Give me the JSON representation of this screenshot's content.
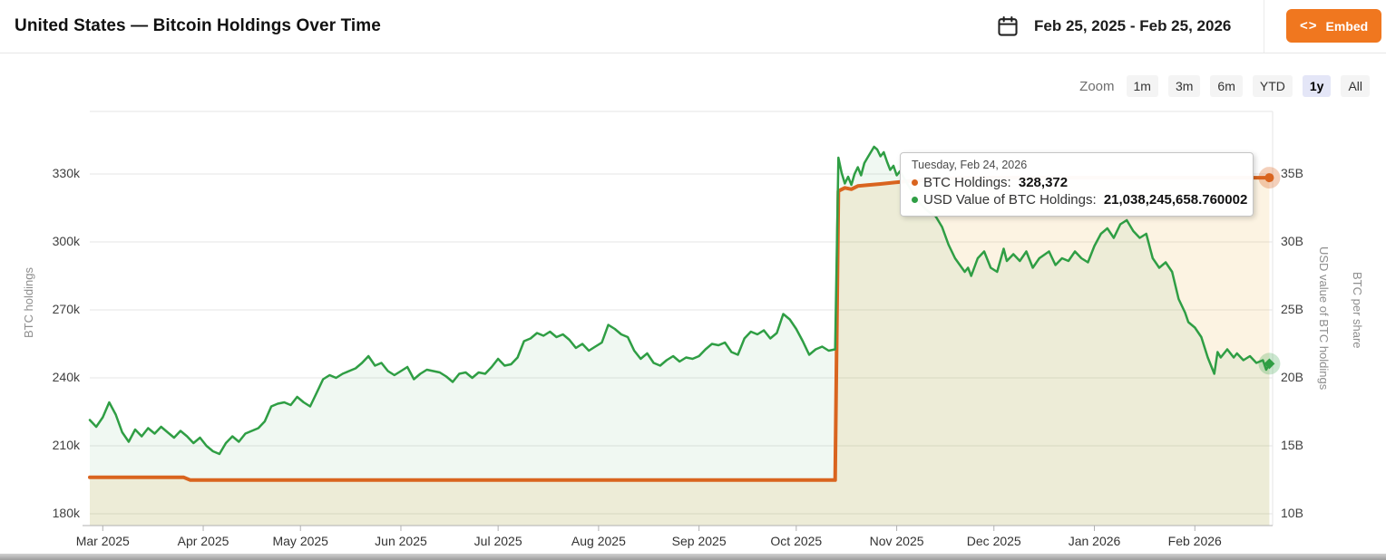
{
  "header": {
    "title": "United States — Bitcoin Holdings Over Time",
    "date_range": "Feb 25, 2025 - Feb 25, 2026",
    "embed_icon": "<>",
    "embed_label": "Embed"
  },
  "toolbar": {
    "zoom_label": "Zoom",
    "buttons": [
      "1m",
      "3m",
      "6m",
      "YTD",
      "1y",
      "All"
    ],
    "selected": "1y"
  },
  "tooltip": {
    "date": "Tuesday, Feb 24, 2026",
    "rows": [
      {
        "label": "BTC Holdings:",
        "value": "328,372",
        "color": "#d9641f"
      },
      {
        "label": "USD Value of BTC Holdings:",
        "value": "21,038,245,658.760002",
        "color": "#2f9e44"
      }
    ]
  },
  "colors": {
    "btc_line": "#d9641f",
    "usd_line": "#2f9e44",
    "btc_fill": "rgba(230,160,30,0.13)",
    "usd_fill": "rgba(47,158,68,0.07)",
    "btc_halo": "rgba(217,100,31,0.3)",
    "usd_halo": "rgba(47,158,68,0.25)",
    "grid": "#e6e6e6",
    "axis_line": "#b0b0b0",
    "accent_button": "#f0771f",
    "selected_range": "#e4e6f7"
  },
  "chart_data": {
    "type": "line",
    "title": "United States — Bitcoin Holdings Over Time",
    "x_range": [
      "Feb 25, 2025",
      "Feb 25, 2026"
    ],
    "grid": "horizontal-only",
    "legend": "none (tooltip shows series names)",
    "axes": {
      "x": {
        "ticks": [
          {
            "label": "Mar 2025",
            "day": 4
          },
          {
            "label": "Apr 2025",
            "day": 35
          },
          {
            "label": "May 2025",
            "day": 65
          },
          {
            "label": "Jun 2025",
            "day": 96
          },
          {
            "label": "Jul 2025",
            "day": 126
          },
          {
            "label": "Aug 2025",
            "day": 157
          },
          {
            "label": "Sep 2025",
            "day": 188
          },
          {
            "label": "Oct 2025",
            "day": 218
          },
          {
            "label": "Nov 2025",
            "day": 249
          },
          {
            "label": "Dec 2025",
            "day": 279
          },
          {
            "label": "Jan 2026",
            "day": 310
          },
          {
            "label": "Feb 2026",
            "day": 341
          }
        ]
      },
      "left": {
        "title": "BTC holdings",
        "tick_labels": [
          "330k",
          "300k",
          "270k",
          "240k",
          "210k",
          "180k"
        ],
        "tick_values": [
          330000,
          300000,
          270000,
          240000,
          210000,
          180000
        ],
        "range": [
          180000,
          345000
        ]
      },
      "right": {
        "titles": [
          "USD value of BTC holdings",
          "BTC per share"
        ],
        "tick_labels": [
          "35B",
          "30B",
          "25B",
          "20B",
          "15B",
          "10B"
        ],
        "tick_values": [
          35,
          30,
          25,
          20,
          15,
          10
        ],
        "range_billions": [
          10,
          37.5
        ]
      }
    },
    "series": [
      {
        "name": "BTC Holdings",
        "axis": "left",
        "color": "#d9641f",
        "width": 4,
        "marker_shape": "circle",
        "last_value_exact": 328372,
        "points": [
          [
            0,
            196100
          ],
          [
            29,
            196100
          ],
          [
            31,
            194900
          ],
          [
            230,
            194900
          ],
          [
            231,
            322500
          ],
          [
            233,
            323900
          ],
          [
            235,
            323300
          ],
          [
            237,
            324700
          ],
          [
            240,
            325100
          ],
          [
            244,
            325600
          ],
          [
            248,
            326200
          ],
          [
            253,
            326900
          ],
          [
            258,
            327500
          ],
          [
            264,
            328000
          ],
          [
            270,
            328372
          ],
          [
            364,
            328372
          ]
        ]
      },
      {
        "name": "USD Value of BTC Holdings",
        "axis": "right",
        "color": "#2f9e44",
        "width": 2.5,
        "marker_shape": "diamond",
        "last_value_exact_billions": 21.03824565876,
        "points": [
          [
            0,
            16.9
          ],
          [
            2,
            16.4
          ],
          [
            4,
            17.1
          ],
          [
            6,
            18.2
          ],
          [
            8,
            17.3
          ],
          [
            10,
            16.0
          ],
          [
            12,
            15.3
          ],
          [
            14,
            16.2
          ],
          [
            16,
            15.7
          ],
          [
            18,
            16.3
          ],
          [
            20,
            15.9
          ],
          [
            22,
            16.4
          ],
          [
            24,
            16.0
          ],
          [
            26,
            15.6
          ],
          [
            28,
            16.1
          ],
          [
            30,
            15.7
          ],
          [
            32,
            15.2
          ],
          [
            34,
            15.6
          ],
          [
            36,
            15.0
          ],
          [
            38,
            14.6
          ],
          [
            40,
            14.4
          ],
          [
            42,
            15.2
          ],
          [
            44,
            15.7
          ],
          [
            46,
            15.3
          ],
          [
            48,
            15.9
          ],
          [
            50,
            16.1
          ],
          [
            52,
            16.3
          ],
          [
            54,
            16.8
          ],
          [
            56,
            17.9
          ],
          [
            58,
            18.1
          ],
          [
            60,
            18.2
          ],
          [
            62,
            18.0
          ],
          [
            64,
            18.6
          ],
          [
            66,
            18.2
          ],
          [
            68,
            17.9
          ],
          [
            70,
            18.9
          ],
          [
            72,
            19.9
          ],
          [
            74,
            20.2
          ],
          [
            76,
            20.0
          ],
          [
            78,
            20.3
          ],
          [
            80,
            20.5
          ],
          [
            82,
            20.7
          ],
          [
            84,
            21.1
          ],
          [
            86,
            21.6
          ],
          [
            88,
            20.9
          ],
          [
            90,
            21.1
          ],
          [
            92,
            20.5
          ],
          [
            94,
            20.2
          ],
          [
            96,
            20.5
          ],
          [
            98,
            20.8
          ],
          [
            100,
            19.9
          ],
          [
            102,
            20.3
          ],
          [
            104,
            20.6
          ],
          [
            106,
            20.5
          ],
          [
            108,
            20.4
          ],
          [
            110,
            20.1
          ],
          [
            112,
            19.7
          ],
          [
            114,
            20.3
          ],
          [
            116,
            20.4
          ],
          [
            118,
            20.0
          ],
          [
            120,
            20.4
          ],
          [
            122,
            20.3
          ],
          [
            124,
            20.8
          ],
          [
            126,
            21.4
          ],
          [
            128,
            20.9
          ],
          [
            130,
            21.0
          ],
          [
            132,
            21.5
          ],
          [
            134,
            22.7
          ],
          [
            136,
            22.9
          ],
          [
            138,
            23.3
          ],
          [
            140,
            23.1
          ],
          [
            142,
            23.4
          ],
          [
            144,
            23.0
          ],
          [
            146,
            23.2
          ],
          [
            148,
            22.8
          ],
          [
            150,
            22.2
          ],
          [
            152,
            22.5
          ],
          [
            154,
            22.0
          ],
          [
            156,
            22.3
          ],
          [
            158,
            22.6
          ],
          [
            160,
            23.9
          ],
          [
            162,
            23.6
          ],
          [
            164,
            23.2
          ],
          [
            166,
            23.0
          ],
          [
            168,
            22.0
          ],
          [
            170,
            21.4
          ],
          [
            172,
            21.8
          ],
          [
            174,
            21.1
          ],
          [
            176,
            20.9
          ],
          [
            178,
            21.3
          ],
          [
            180,
            21.6
          ],
          [
            182,
            21.2
          ],
          [
            184,
            21.5
          ],
          [
            186,
            21.4
          ],
          [
            188,
            21.6
          ],
          [
            190,
            22.1
          ],
          [
            192,
            22.5
          ],
          [
            194,
            22.4
          ],
          [
            196,
            22.6
          ],
          [
            198,
            21.9
          ],
          [
            200,
            21.7
          ],
          [
            202,
            22.9
          ],
          [
            204,
            23.4
          ],
          [
            206,
            23.2
          ],
          [
            208,
            23.5
          ],
          [
            210,
            22.9
          ],
          [
            212,
            23.3
          ],
          [
            214,
            24.7
          ],
          [
            216,
            24.3
          ],
          [
            218,
            23.6
          ],
          [
            220,
            22.7
          ],
          [
            222,
            21.7
          ],
          [
            224,
            22.1
          ],
          [
            226,
            22.3
          ],
          [
            228,
            22.0
          ],
          [
            230,
            22.1
          ],
          [
            231,
            36.2
          ],
          [
            232,
            35.1
          ],
          [
            233,
            34.3
          ],
          [
            234,
            34.8
          ],
          [
            235,
            34.2
          ],
          [
            236,
            35.0
          ],
          [
            237,
            35.5
          ],
          [
            238,
            34.9
          ],
          [
            239,
            35.8
          ],
          [
            240,
            36.2
          ],
          [
            241,
            36.6
          ],
          [
            242,
            37.0
          ],
          [
            243,
            36.8
          ],
          [
            244,
            36.3
          ],
          [
            245,
            36.6
          ],
          [
            246,
            35.9
          ],
          [
            247,
            35.3
          ],
          [
            248,
            35.6
          ],
          [
            249,
            34.9
          ],
          [
            250,
            35.2
          ],
          [
            252,
            34.4
          ],
          [
            254,
            33.6
          ],
          [
            256,
            32.9
          ],
          [
            258,
            32.4
          ],
          [
            260,
            32.0
          ],
          [
            261,
            31.9
          ],
          [
            263,
            31.1
          ],
          [
            265,
            29.8
          ],
          [
            267,
            28.8
          ],
          [
            270,
            27.8
          ],
          [
            271,
            28.1
          ],
          [
            272,
            27.5
          ],
          [
            274,
            28.8
          ],
          [
            276,
            29.3
          ],
          [
            278,
            28.1
          ],
          [
            280,
            27.8
          ],
          [
            282,
            29.5
          ],
          [
            283,
            28.6
          ],
          [
            285,
            29.1
          ],
          [
            287,
            28.6
          ],
          [
            289,
            29.3
          ],
          [
            291,
            28.1
          ],
          [
            293,
            28.8
          ],
          [
            296,
            29.3
          ],
          [
            298,
            28.3
          ],
          [
            300,
            28.8
          ],
          [
            302,
            28.6
          ],
          [
            304,
            29.3
          ],
          [
            306,
            28.8
          ],
          [
            308,
            28.5
          ],
          [
            310,
            29.7
          ],
          [
            312,
            30.6
          ],
          [
            314,
            31.0
          ],
          [
            316,
            30.3
          ],
          [
            318,
            31.3
          ],
          [
            320,
            31.6
          ],
          [
            322,
            30.8
          ],
          [
            324,
            30.3
          ],
          [
            326,
            30.6
          ],
          [
            328,
            28.8
          ],
          [
            330,
            28.1
          ],
          [
            332,
            28.5
          ],
          [
            334,
            27.8
          ],
          [
            336,
            25.8
          ],
          [
            338,
            24.8
          ],
          [
            339,
            24.1
          ],
          [
            341,
            23.7
          ],
          [
            343,
            23.0
          ],
          [
            345,
            21.5
          ],
          [
            347,
            20.3
          ],
          [
            348,
            21.9
          ],
          [
            349,
            21.5
          ],
          [
            351,
            22.1
          ],
          [
            353,
            21.5
          ],
          [
            354,
            21.8
          ],
          [
            356,
            21.3
          ],
          [
            358,
            21.6
          ],
          [
            360,
            21.1
          ],
          [
            362,
            21.3
          ],
          [
            363,
            20.6
          ],
          [
            364,
            21.03824565876
          ]
        ]
      }
    ]
  }
}
